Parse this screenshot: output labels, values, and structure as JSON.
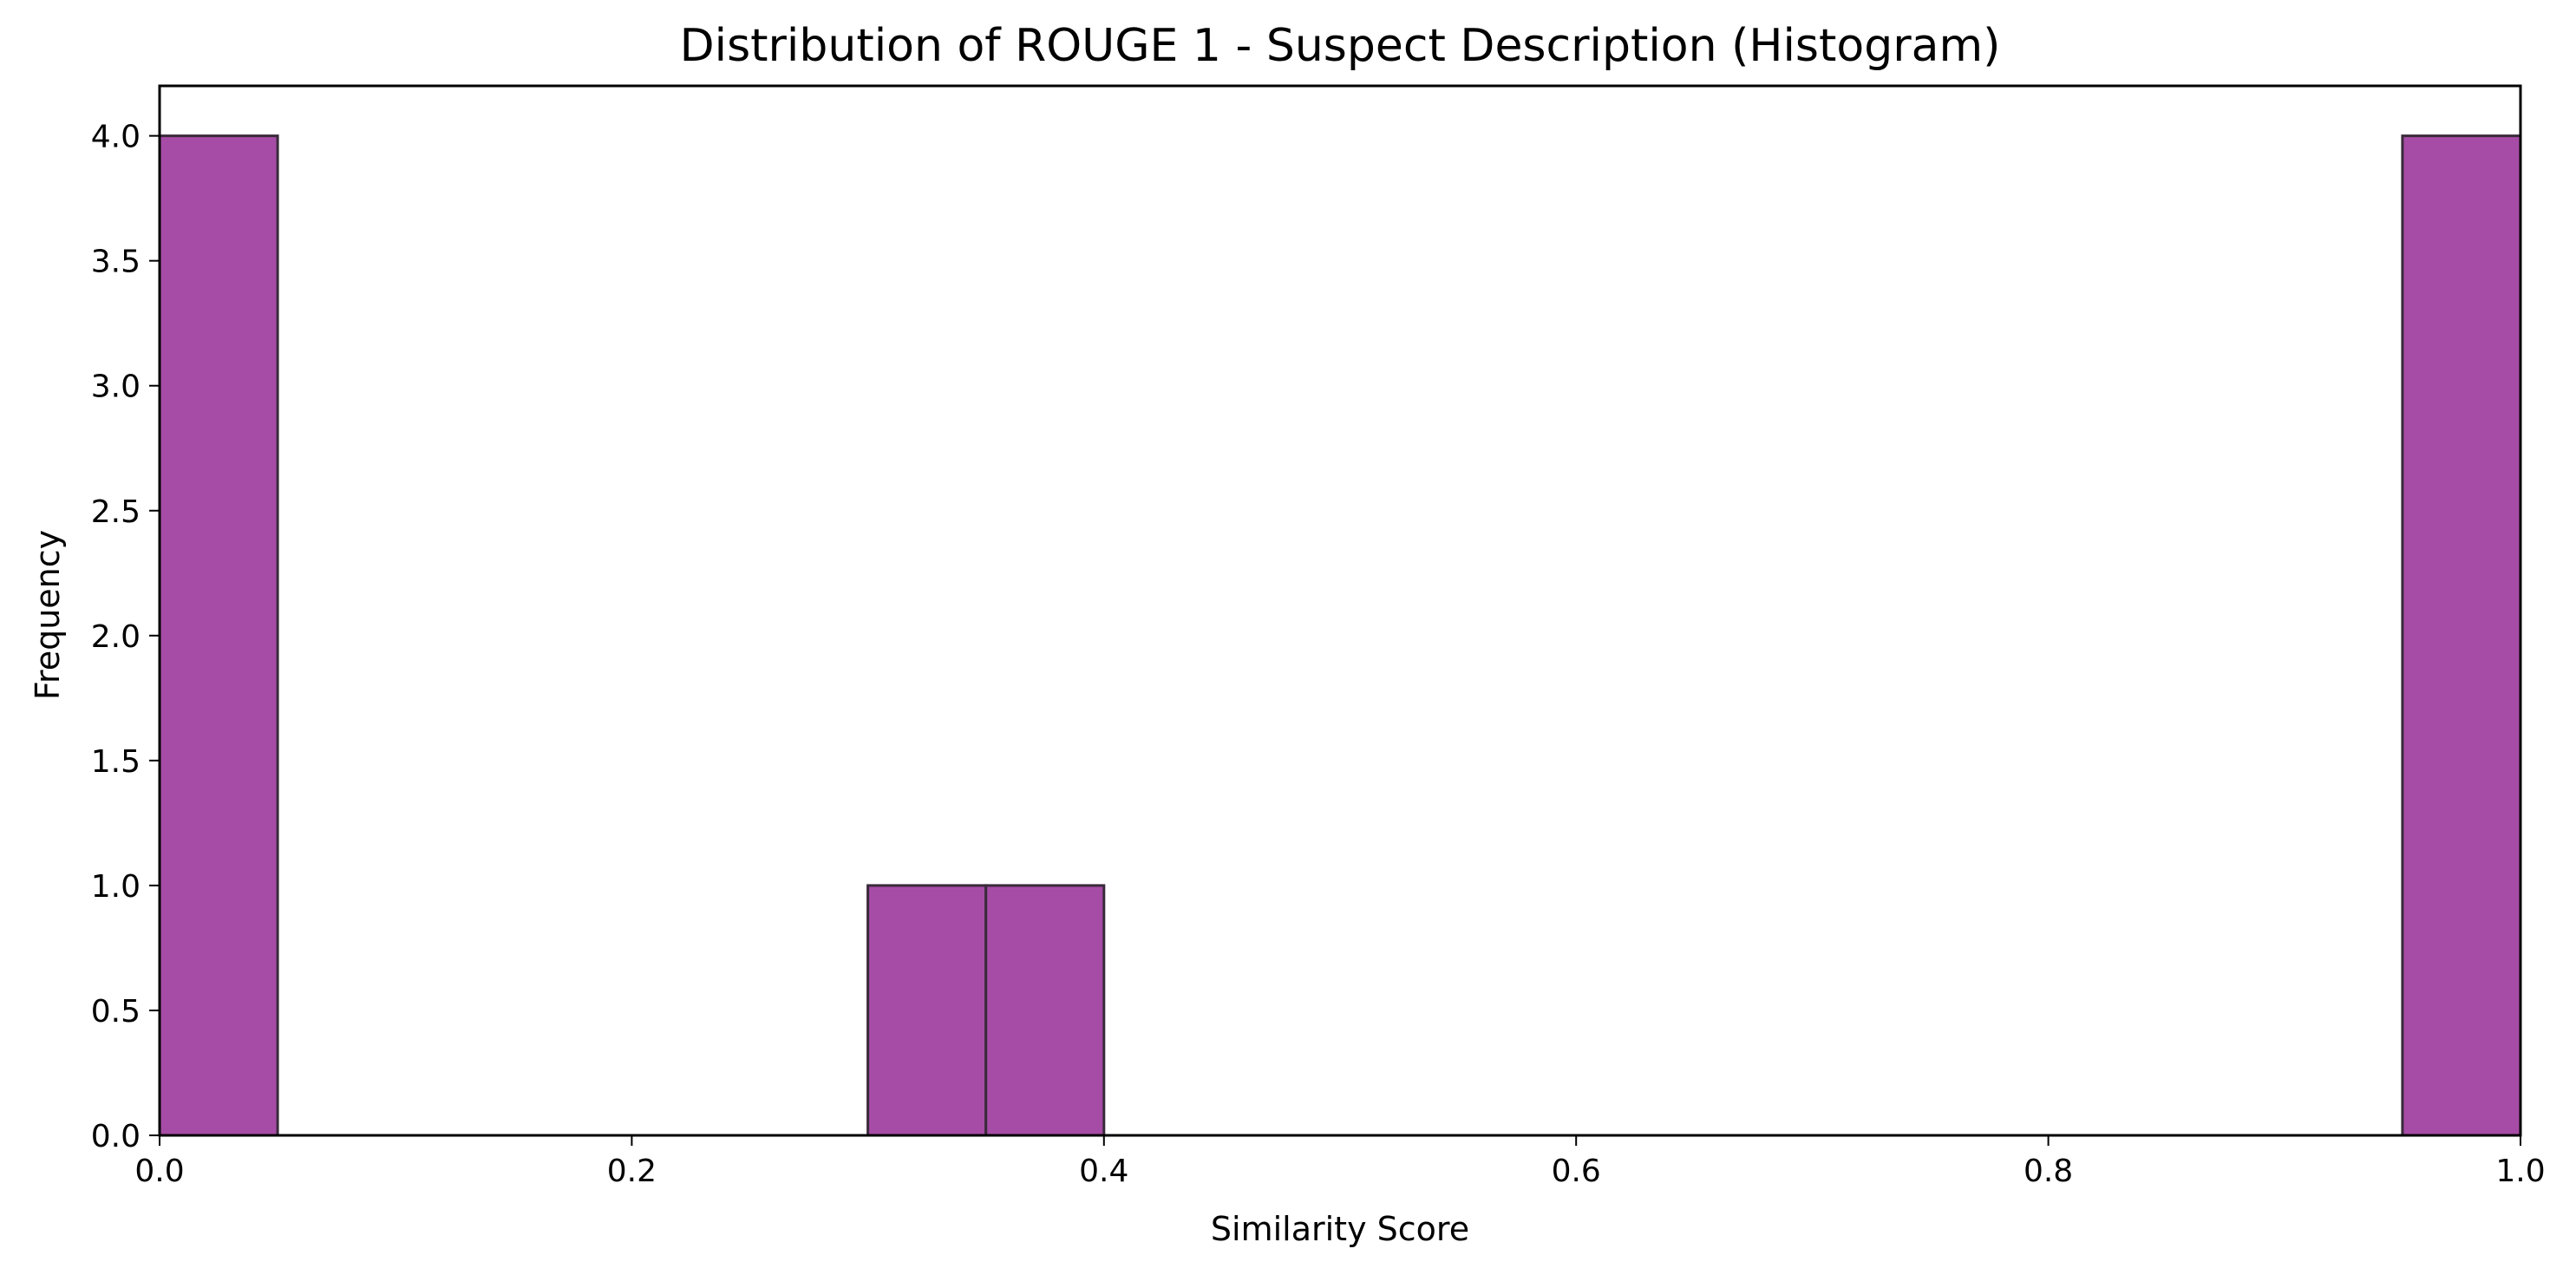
{
  "chart_data": {
    "type": "bar",
    "subtype": "histogram",
    "title": "Distribution of ROUGE 1 - Suspect Description (Histogram)",
    "xlabel": "Similarity Score",
    "ylabel": "Frequency",
    "xlim": [
      0.0,
      1.0
    ],
    "ylim": [
      0.0,
      4.2
    ],
    "bin_width": 0.05,
    "bins": [
      {
        "start": 0.0,
        "end": 0.05,
        "count": 4
      },
      {
        "start": 0.3,
        "end": 0.35,
        "count": 1
      },
      {
        "start": 0.35,
        "end": 0.4,
        "count": 1
      },
      {
        "start": 0.95,
        "end": 1.0,
        "count": 4
      }
    ],
    "x_ticks": [
      {
        "value": 0.0,
        "label": "0.0"
      },
      {
        "value": 0.2,
        "label": "0.2"
      },
      {
        "value": 0.4,
        "label": "0.4"
      },
      {
        "value": 0.6,
        "label": "0.6"
      },
      {
        "value": 0.8,
        "label": "0.8"
      },
      {
        "value": 1.0,
        "label": "1.0"
      }
    ],
    "y_ticks": [
      {
        "value": 0.0,
        "label": "0.0"
      },
      {
        "value": 0.5,
        "label": "0.5"
      },
      {
        "value": 1.0,
        "label": "1.0"
      },
      {
        "value": 1.5,
        "label": "1.5"
      },
      {
        "value": 2.0,
        "label": "2.0"
      },
      {
        "value": 2.5,
        "label": "2.5"
      },
      {
        "value": 3.0,
        "label": "3.0"
      },
      {
        "value": 3.5,
        "label": "3.5"
      },
      {
        "value": 4.0,
        "label": "4.0"
      }
    ],
    "grid": false,
    "legend": "none",
    "colors": {
      "bar_fill": "#a64ca6",
      "bar_edge": "#3a2a3a"
    }
  }
}
